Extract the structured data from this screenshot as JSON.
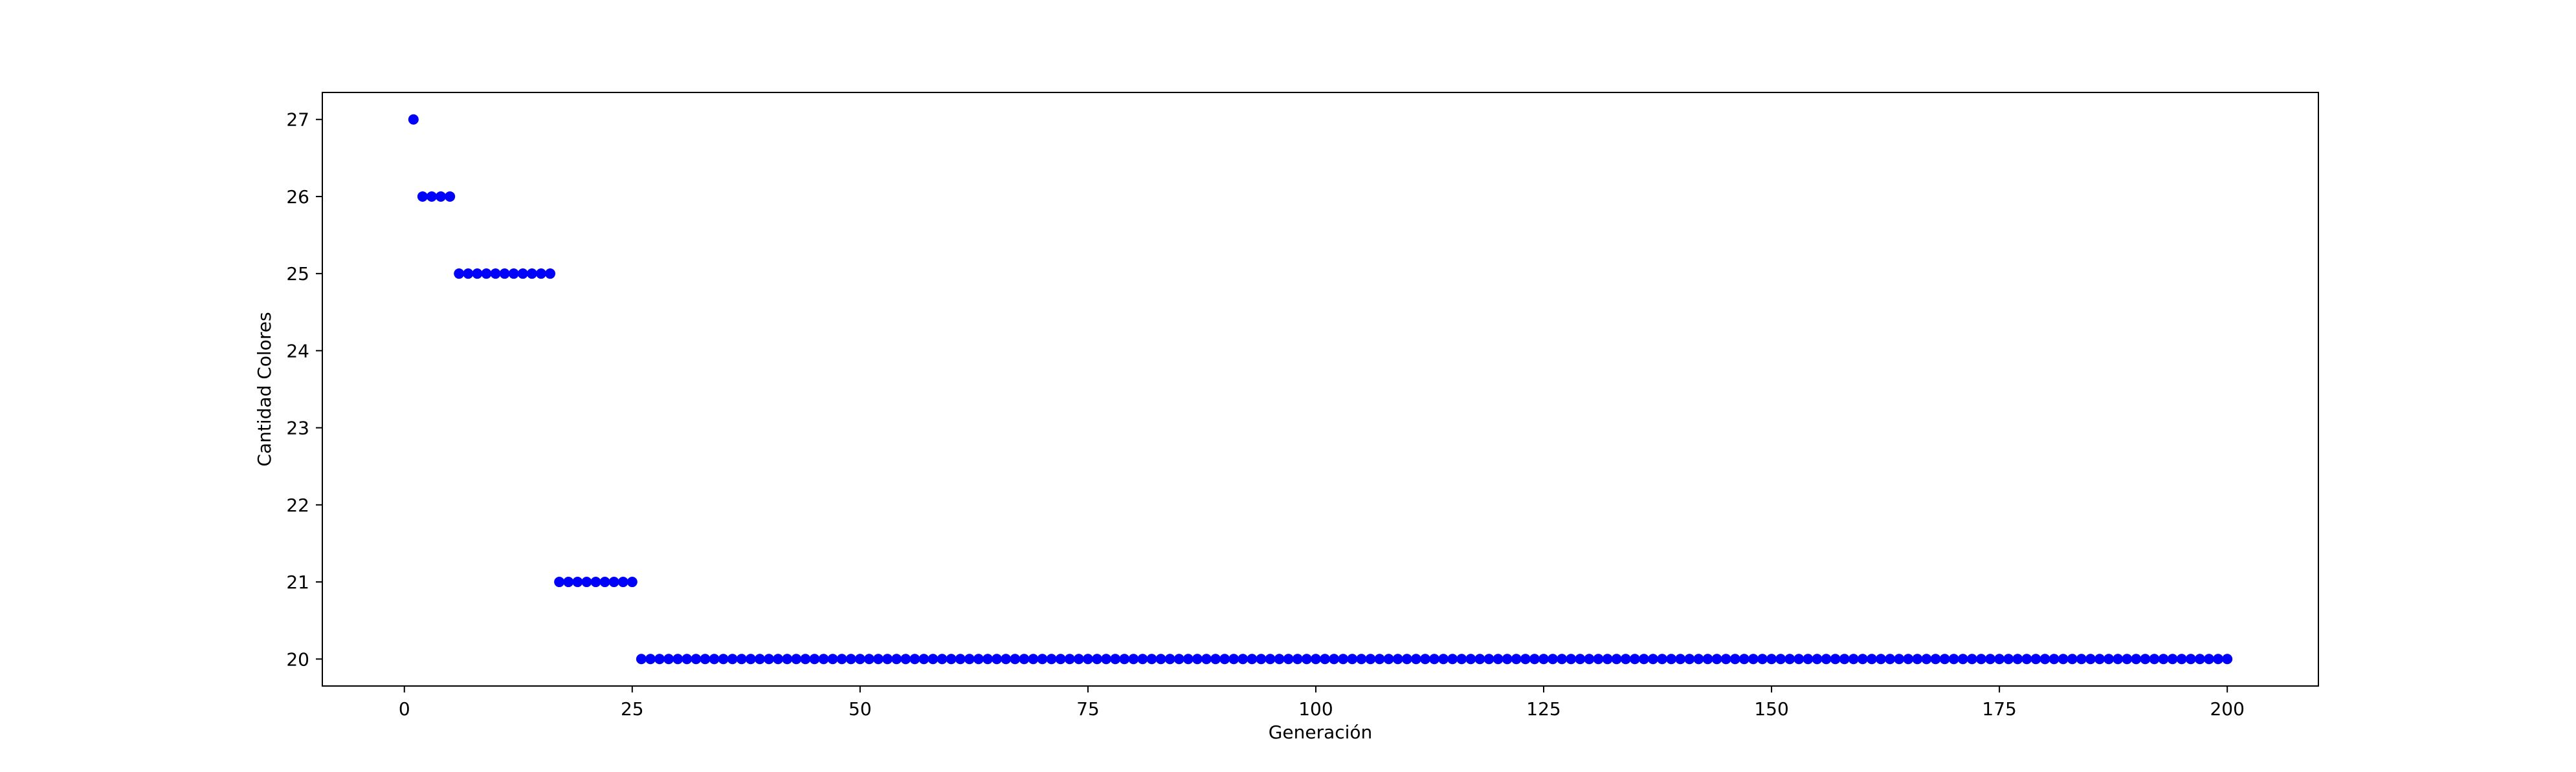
{
  "chart_data": {
    "type": "scatter",
    "title": "",
    "xlabel": "Generación",
    "ylabel": "Cantidad Colores",
    "xlim": [
      -9,
      210
    ],
    "ylim": [
      19.65,
      27.35
    ],
    "xticks": [
      0,
      25,
      50,
      75,
      100,
      125,
      150,
      175,
      200
    ],
    "yticks": [
      20,
      21,
      22,
      23,
      24,
      25,
      26,
      27
    ],
    "grid": false,
    "marker_color": "#0000ff",
    "segments": [
      {
        "x_start": 1,
        "x_end": 1,
        "y": 27
      },
      {
        "x_start": 2,
        "x_end": 5,
        "y": 26
      },
      {
        "x_start": 6,
        "x_end": 16,
        "y": 25
      },
      {
        "x_start": 17,
        "x_end": 25,
        "y": 21
      },
      {
        "x_start": 26,
        "x_end": 200,
        "y": 20
      }
    ]
  }
}
